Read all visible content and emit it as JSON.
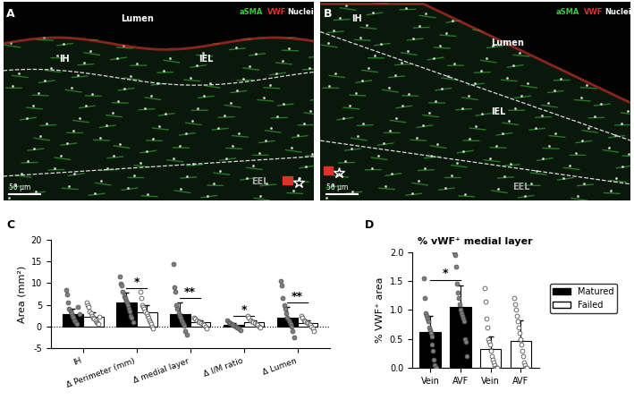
{
  "micrographs": [
    {
      "label": "A",
      "regions": [
        "Lumen",
        "IH",
        "IEL",
        "EEL"
      ],
      "scale_bar": "50 µm",
      "channels": [
        {
          "name": "aSMA",
          "color": "#3cc83c"
        },
        {
          "name": "VWF",
          "color": "#e0302a"
        },
        {
          "name": "Nuclei",
          "color": "#ffffff"
        }
      ]
    },
    {
      "label": "B",
      "regions": [
        "Lumen",
        "IH",
        "IEL",
        "EEL"
      ],
      "scale_bar": "50 µm",
      "channels": [
        {
          "name": "aSMA",
          "color": "#3cc83c"
        },
        {
          "name": "VWF",
          "color": "#e0302a"
        },
        {
          "name": "Nuclei",
          "color": "#ffffff"
        }
      ]
    }
  ],
  "chart_data": [
    {
      "type": "bar",
      "label": "C",
      "ylabel": "Area (mm²)",
      "categories": [
        "IH",
        "Δ Perimeter (mm)",
        "Δ medial layer",
        "Δ I/M ratio",
        "Δ Lumen"
      ],
      "ylim": [
        -5,
        20
      ],
      "yticks": [
        -5,
        0,
        5,
        10,
        15,
        20
      ],
      "series": [
        {
          "name": "Matured",
          "color": "#000000",
          "values": [
            2.8,
            5.5,
            2.8,
            0.3,
            2.1
          ],
          "errors": [
            1.2,
            2.3,
            2.7,
            0.4,
            2.4
          ],
          "points": [
            [
              8.5,
              7.5,
              5.5,
              4.0,
              3.5,
              3.0,
              2.5,
              2.0,
              1.5,
              1.2,
              0.8,
              0.5,
              4.5,
              2.8
            ],
            [
              11.5,
              9.8,
              9.5,
              8.0,
              7.0,
              6.5,
              6.0,
              5.5,
              5.0,
              4.0,
              3.5,
              2.5,
              2.0,
              1.0
            ],
            [
              14.5,
              9.0,
              8.0,
              5.0,
              4.0,
              3.0,
              2.5,
              2.0,
              1.5,
              1.0,
              0.5,
              0.2,
              -1.0,
              -2.0
            ],
            [
              1.5,
              1.0,
              0.8,
              0.5,
              0.3,
              0.1,
              0.0,
              -0.2,
              -0.5,
              -0.8
            ],
            [
              10.5,
              9.5,
              6.5,
              5.0,
              4.0,
              3.0,
              2.0,
              1.5,
              1.0,
              0.5,
              0.0,
              -1.0,
              -2.5
            ]
          ]
        },
        {
          "name": "Failed",
          "color": "#ffffff",
          "values": [
            2.3,
            3.3,
            0.9,
            1.0,
            0.7
          ],
          "errors": [
            0.9,
            1.7,
            0.6,
            0.4,
            0.6
          ],
          "points": [
            [
              5.5,
              5.0,
              4.5,
              3.5,
              3.0,
              2.5,
              2.0,
              1.8,
              1.5,
              1.0,
              0.8,
              0.5,
              2.2
            ],
            [
              8.0,
              6.5,
              5.0,
              4.5,
              4.0,
              3.5,
              3.0,
              2.5,
              2.0,
              1.5,
              1.0,
              0.5,
              0.0,
              -0.5
            ],
            [
              2.0,
              1.8,
              1.5,
              1.2,
              1.0,
              0.8,
              0.5,
              0.3,
              0.0,
              -0.5
            ],
            [
              2.5,
              2.0,
              1.5,
              1.2,
              1.0,
              0.8,
              0.5,
              0.3,
              0.0,
              -0.3
            ],
            [
              2.5,
              2.0,
              1.5,
              1.2,
              1.0,
              0.8,
              0.5,
              0.3,
              0.0,
              -0.5,
              -1.0
            ]
          ]
        }
      ],
      "significance": [
        {
          "category": 1,
          "text": "*"
        },
        {
          "category": 2,
          "text": "**"
        },
        {
          "category": 3,
          "text": "*"
        },
        {
          "category": 4,
          "text": "**"
        }
      ]
    },
    {
      "type": "bar",
      "label": "D",
      "title": "% vWF⁺ medial layer",
      "ylabel": "% VWF⁺ area",
      "categories": [
        "Vein",
        "AVF",
        "Vein",
        "AVF"
      ],
      "ylim": [
        0.0,
        2.0
      ],
      "yticks": [
        0.0,
        0.5,
        1.0,
        1.5,
        2.0
      ],
      "legend": "right",
      "series": [
        {
          "name": "Matured",
          "color": "#000000",
          "values": [
            0.62,
            1.05,
            null,
            null
          ],
          "errors": [
            0.28,
            0.37,
            null,
            null
          ],
          "points": [
            [
              1.55,
              1.2,
              0.95,
              0.9,
              0.85,
              0.8,
              0.7,
              0.65,
              0.6,
              0.55,
              0.4,
              0.3,
              0.15,
              0.05,
              0.0,
              0.0
            ],
            [
              2.0,
              1.95,
              1.75,
              1.45,
              1.3,
              1.2,
              1.1,
              1.0,
              0.95,
              0.9,
              0.85,
              0.8,
              0.5,
              0.45,
              0.2
            ],
            null,
            null
          ]
        },
        {
          "name": "Failed",
          "color": "#ffffff",
          "values": [
            null,
            null,
            0.33,
            0.47
          ],
          "errors": [
            null,
            null,
            0.22,
            0.35
          ],
          "points": [
            null,
            null,
            [
              1.38,
              1.15,
              0.85,
              0.7,
              0.5,
              0.45,
              0.4,
              0.3,
              0.2,
              0.15,
              0.1,
              0.05,
              0.0,
              0.0,
              0.0
            ],
            [
              1.2,
              1.1,
              1.0,
              0.9,
              0.8,
              0.7,
              0.6,
              0.5,
              0.4,
              0.3,
              0.2,
              0.1,
              0.05,
              0.0,
              0.0
            ]
          ]
        }
      ],
      "significance": [
        {
          "between": [
            0,
            1
          ],
          "text": "*"
        }
      ]
    }
  ]
}
